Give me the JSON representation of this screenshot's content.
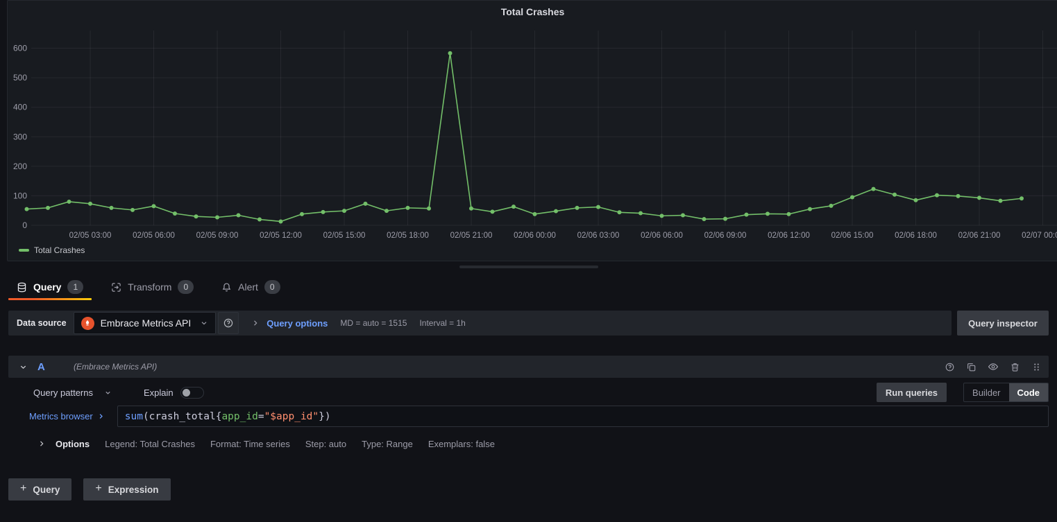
{
  "panel": {
    "title": "Total Crashes"
  },
  "chart_data": {
    "type": "line",
    "title": "Total Crashes",
    "x_start": "02/05 00:00",
    "x_interval_hours": 1,
    "series": [
      {
        "name": "Total Crashes",
        "color": "#73bf69",
        "values": [
          55,
          59,
          80,
          73,
          59,
          52,
          65,
          40,
          30,
          27,
          34,
          20,
          13,
          38,
          45,
          49,
          73,
          49,
          59,
          57,
          583,
          57,
          46,
          63,
          38,
          48,
          59,
          62,
          44,
          41,
          32,
          34,
          21,
          22,
          36,
          39,
          38,
          55,
          66,
          95,
          123,
          104,
          85,
          102,
          99,
          93,
          83,
          91
        ]
      }
    ],
    "y_ticks": [
      0,
      100,
      200,
      300,
      400,
      500,
      600
    ],
    "ylim": [
      0,
      660
    ],
    "x_ticks": [
      {
        "hour": 3,
        "label": "02/05 03:00"
      },
      {
        "hour": 6,
        "label": "02/05 06:00"
      },
      {
        "hour": 9,
        "label": "02/05 09:00"
      },
      {
        "hour": 12,
        "label": "02/05 12:00"
      },
      {
        "hour": 15,
        "label": "02/05 15:00"
      },
      {
        "hour": 18,
        "label": "02/05 18:00"
      },
      {
        "hour": 21,
        "label": "02/05 21:00"
      },
      {
        "hour": 24,
        "label": "02/06 00:00"
      },
      {
        "hour": 27,
        "label": "02/06 03:00"
      },
      {
        "hour": 30,
        "label": "02/06 06:00"
      },
      {
        "hour": 33,
        "label": "02/06 09:00"
      },
      {
        "hour": 36,
        "label": "02/06 12:00"
      },
      {
        "hour": 39,
        "label": "02/06 15:00"
      },
      {
        "hour": 42,
        "label": "02/06 18:00"
      },
      {
        "hour": 45,
        "label": "02/06 21:00"
      },
      {
        "hour": 48,
        "label": "02/07 00:00"
      }
    ],
    "grid": true,
    "legend_position": "bottom-left"
  },
  "tabs": [
    {
      "label": "Query",
      "badge": "1",
      "active": true
    },
    {
      "label": "Transform",
      "badge": "0",
      "active": false
    },
    {
      "label": "Alert",
      "badge": "0",
      "active": false
    }
  ],
  "toolbar": {
    "datasource_label": "Data source",
    "datasource_value": "Embrace Metrics API",
    "query_options_label": "Query options",
    "max_data_points_text": "MD = auto = 1515",
    "interval_text": "Interval = 1h",
    "query_inspector_label": "Query inspector"
  },
  "query_row": {
    "ref_id": "A",
    "datasource_hint": "(Embrace Metrics API)",
    "query_patterns_label": "Query patterns",
    "explain_label": "Explain",
    "explain_on": false,
    "run_queries_label": "Run queries",
    "builder_label": "Builder",
    "code_label": "Code",
    "selected_mode": "Code",
    "metrics_browser_label": "Metrics browser",
    "query_text": "sum(crash_total{app_id=\"$app_id\"})",
    "query_parts": [
      {
        "text": "sum",
        "color": "#6e9fff"
      },
      {
        "text": "(crash_total{",
        "color": "#ccccdc"
      },
      {
        "text": "app_id",
        "color": "#73bf69"
      },
      {
        "text": "=",
        "color": "#ccccdc"
      },
      {
        "text": "\"$app_id\"",
        "color": "#ff8e6e"
      },
      {
        "text": "})",
        "color": "#ccccdc"
      }
    ]
  },
  "options_row": {
    "label": "Options",
    "items": [
      "Legend: Total Crashes",
      "Format: Time series",
      "Step: auto",
      "Type: Range",
      "Exemplars: false"
    ]
  },
  "footer": {
    "add_query_label": "Query",
    "add_expression_label": "Expression"
  },
  "colors": {
    "accent_orange": "#ff780a",
    "link_blue": "#6e9fff",
    "series_green": "#73bf69",
    "datasource_logo_orange": "#e6522c"
  }
}
